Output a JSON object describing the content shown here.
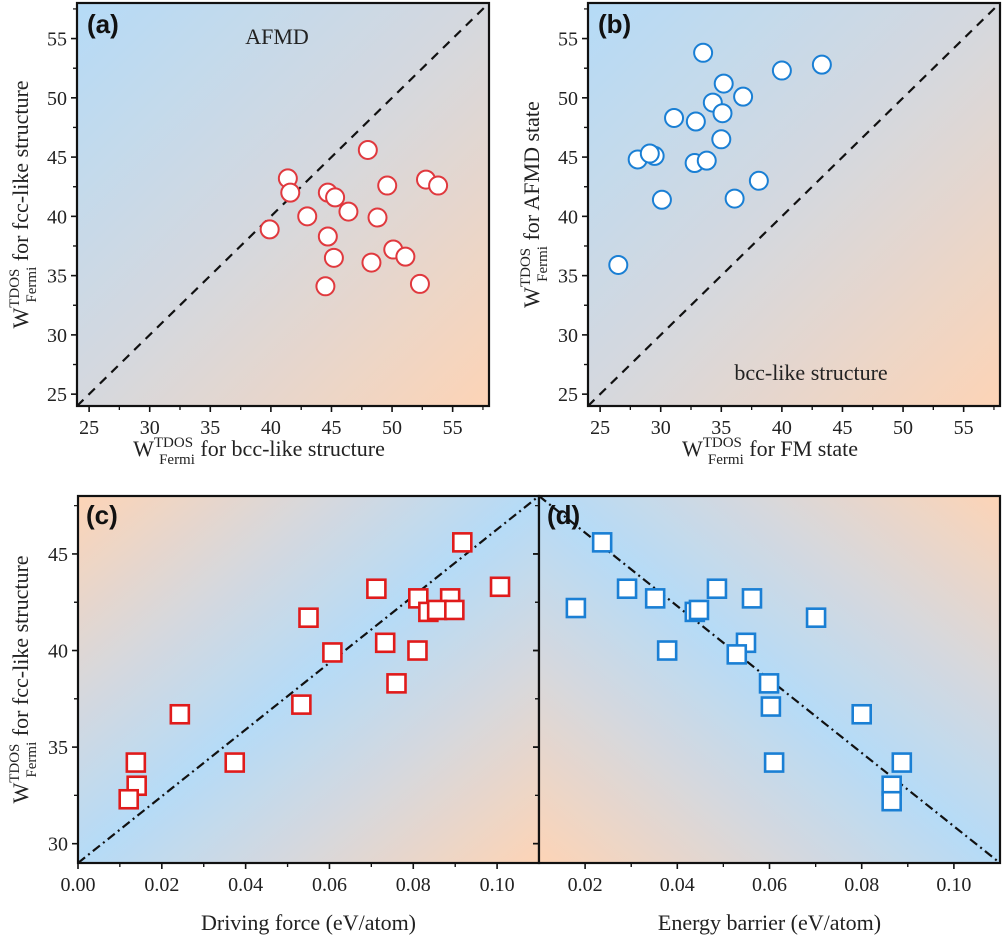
{
  "chart_data": [
    {
      "id": "a",
      "type": "scatter",
      "panel_label": "(a)",
      "annotation": "AFMD",
      "annotation_position": "top-center",
      "title": "",
      "xlabel": {
        "main": "W",
        "sup": "TDOS",
        "sub": "Fermi",
        "rest": " for bcc-like structure"
      },
      "ylabel": {
        "main": "W",
        "sup": "TDOS",
        "sub": "Fermi",
        "rest": " for fcc-like structure"
      },
      "xlim": [
        24,
        58
      ],
      "ylim": [
        24,
        58
      ],
      "xticks": [
        25,
        30,
        35,
        40,
        45,
        50,
        55
      ],
      "yticks": [
        25,
        30,
        35,
        40,
        45,
        50,
        55
      ],
      "xtick_labels": [
        "25",
        "30",
        "35",
        "40",
        "45",
        "50",
        "55"
      ],
      "ytick_labels": [
        "25",
        "30",
        "35",
        "40",
        "45",
        "50",
        "55"
      ],
      "marker": "circle",
      "marker_color": "#e0393e",
      "background": "diagonal-gradient-blue-top-left-orange-bottom-right",
      "reference_line": {
        "style": "dashed",
        "from": [
          24,
          24
        ],
        "to": [
          58,
          58
        ]
      },
      "points": [
        [
          48.0,
          45.6
        ],
        [
          41.4,
          43.2
        ],
        [
          41.6,
          42.0
        ],
        [
          44.7,
          42.0
        ],
        [
          45.3,
          41.6
        ],
        [
          49.6,
          42.6
        ],
        [
          52.8,
          43.1
        ],
        [
          53.8,
          42.6
        ],
        [
          46.4,
          40.4
        ],
        [
          43.0,
          40.0
        ],
        [
          48.8,
          39.9
        ],
        [
          39.9,
          38.9
        ],
        [
          44.7,
          38.3
        ],
        [
          45.2,
          36.5
        ],
        [
          50.1,
          37.2
        ],
        [
          51.1,
          36.6
        ],
        [
          48.3,
          36.1
        ],
        [
          44.5,
          34.1
        ],
        [
          52.3,
          34.3
        ]
      ]
    },
    {
      "id": "b",
      "type": "scatter",
      "panel_label": "(b)",
      "annotation": "bcc-like structure",
      "annotation_position": "bottom-right",
      "title": "",
      "xlabel": {
        "main": "W",
        "sup": "TDOS",
        "sub": "Fermi",
        "rest": " for FM state"
      },
      "ylabel": {
        "main": "W",
        "sup": "TDOS",
        "sub": "Fermi",
        "rest": " for AFMD state"
      },
      "xlim": [
        24,
        58
      ],
      "ylim": [
        24,
        58
      ],
      "xticks": [
        25,
        30,
        35,
        40,
        45,
        50,
        55
      ],
      "yticks": [
        25,
        30,
        35,
        40,
        45,
        50,
        55
      ],
      "xtick_labels": [
        "25",
        "30",
        "35",
        "40",
        "45",
        "50",
        "55"
      ],
      "ytick_labels": [
        "25",
        "30",
        "35",
        "40",
        "45",
        "50",
        "55"
      ],
      "marker": "circle",
      "marker_color": "#1a7fd4",
      "background": "diagonal-gradient-blue-top-left-orange-bottom-right",
      "reference_line": {
        "style": "dashed",
        "from": [
          24,
          24
        ],
        "to": [
          58,
          58
        ]
      },
      "points": [
        [
          33.5,
          53.8
        ],
        [
          40.0,
          52.3
        ],
        [
          43.3,
          52.8
        ],
        [
          35.2,
          51.2
        ],
        [
          36.8,
          50.1
        ],
        [
          34.3,
          49.6
        ],
        [
          35.1,
          48.7
        ],
        [
          31.1,
          48.3
        ],
        [
          32.9,
          48.0
        ],
        [
          35.0,
          46.5
        ],
        [
          28.1,
          44.8
        ],
        [
          29.5,
          45.1
        ],
        [
          29.1,
          45.3
        ],
        [
          32.8,
          44.5
        ],
        [
          33.8,
          44.7
        ],
        [
          38.1,
          43.0
        ],
        [
          36.1,
          41.5
        ],
        [
          30.1,
          41.4
        ],
        [
          26.5,
          35.9
        ]
      ]
    },
    {
      "id": "c",
      "type": "scatter",
      "panel_label": "(c)",
      "annotation": "",
      "title": "",
      "xlabel": {
        "main": "Driving force (eV/atom)"
      },
      "ylabel": {
        "main": "W",
        "sup": "TDOS",
        "sub": "Fermi",
        "rest": " for fcc-like  structure"
      },
      "xlim": [
        0.0,
        0.11
      ],
      "ylim": [
        29,
        48
      ],
      "xticks": [
        0.0,
        0.02,
        0.04,
        0.06,
        0.08,
        0.1
      ],
      "yticks": [
        30,
        35,
        40,
        45
      ],
      "xtick_labels": [
        "0.00",
        "0.02",
        "0.04",
        "0.06",
        "0.08",
        "0.10"
      ],
      "ytick_labels": [
        "30",
        "35",
        "40",
        "45"
      ],
      "marker": "square",
      "marker_color": "#e01b1b",
      "background": "band-gradient-blue-along-rising-diagonal-orange-corners",
      "reference_line": {
        "style": "dash-dot",
        "from": [
          0.0,
          29.0
        ],
        "to": [
          0.11,
          48.0
        ]
      },
      "points": [
        [
          0.0917,
          45.6
        ],
        [
          0.0712,
          43.2
        ],
        [
          0.1007,
          43.3
        ],
        [
          0.0812,
          42.7
        ],
        [
          0.0888,
          42.7
        ],
        [
          0.0836,
          42.0
        ],
        [
          0.0857,
          42.1
        ],
        [
          0.0898,
          42.1
        ],
        [
          0.055,
          41.7
        ],
        [
          0.0607,
          39.9
        ],
        [
          0.0733,
          40.4
        ],
        [
          0.081,
          40.0
        ],
        [
          0.076,
          38.3
        ],
        [
          0.0243,
          36.7
        ],
        [
          0.0533,
          37.2
        ],
        [
          0.0138,
          34.2
        ],
        [
          0.0374,
          34.2
        ],
        [
          0.014,
          33.0
        ],
        [
          0.0121,
          32.3
        ]
      ]
    },
    {
      "id": "d",
      "type": "scatter",
      "panel_label": "(d)",
      "annotation": "",
      "title": "",
      "xlabel": {
        "main": "Energy barrier (eV/atom)"
      },
      "ylabel": null,
      "xlim": [
        0.01,
        0.11
      ],
      "ylim": [
        29,
        48
      ],
      "xticks": [
        0.02,
        0.04,
        0.06,
        0.08,
        0.1
      ],
      "yticks": [
        30,
        35,
        40,
        45
      ],
      "xtick_labels": [
        "0.02",
        "0.04",
        "0.06",
        "0.08",
        "0.10"
      ],
      "ytick_labels": [],
      "marker": "square",
      "marker_color": "#1a7fd4",
      "background": "band-gradient-blue-along-falling-diagonal-orange-corners",
      "reference_line": {
        "style": "dash-dot",
        "from": [
          0.01,
          48.0
        ],
        "to": [
          0.11,
          29.0
        ]
      },
      "points": [
        [
          0.0237,
          45.6
        ],
        [
          0.0291,
          43.2
        ],
        [
          0.0486,
          43.2
        ],
        [
          0.0352,
          42.7
        ],
        [
          0.0562,
          42.7
        ],
        [
          0.018,
          42.2
        ],
        [
          0.0438,
          42.0
        ],
        [
          0.0447,
          42.1
        ],
        [
          0.0701,
          41.7
        ],
        [
          0.0549,
          40.4
        ],
        [
          0.0529,
          39.8
        ],
        [
          0.0378,
          40.0
        ],
        [
          0.0599,
          38.3
        ],
        [
          0.0603,
          37.1
        ],
        [
          0.08,
          36.7
        ],
        [
          0.061,
          34.2
        ],
        [
          0.0887,
          34.2
        ],
        [
          0.0865,
          33.0
        ],
        [
          0.0865,
          32.2
        ]
      ]
    }
  ],
  "colors": {
    "gradient_blue": "#b5dbf7",
    "gradient_gray": "#d5d8de",
    "gradient_orange": "#fdd4b6",
    "axis": "#111111",
    "marker_fill": "#ffffff"
  }
}
